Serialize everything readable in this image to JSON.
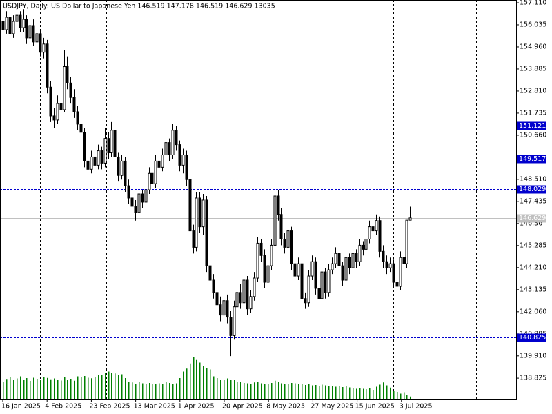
{
  "chart_data": {
    "type": "candlestick",
    "title": "USDJPY, Daily:  US Dollar to Japanese Yen  146.519 147.178 146.519 146.629  13035",
    "ohlc": [
      [
        156.2,
        156.6,
        155.5,
        155.8
      ],
      [
        155.8,
        156.7,
        155.6,
        156.4
      ],
      [
        156.4,
        156.6,
        155.3,
        155.6
      ],
      [
        155.6,
        156.5,
        155.4,
        156.2
      ],
      [
        156.2,
        156.9,
        156.0,
        156.5
      ],
      [
        156.5,
        156.7,
        155.7,
        155.9
      ],
      [
        155.9,
        156.8,
        155.7,
        156.3
      ],
      [
        156.3,
        156.5,
        155.1,
        155.4
      ],
      [
        155.4,
        156.2,
        155.2,
        156.0
      ],
      [
        156.0,
        156.3,
        155.0,
        155.2
      ],
      [
        155.2,
        155.9,
        154.9,
        155.6
      ],
      [
        155.6,
        155.8,
        154.5,
        154.7
      ],
      [
        154.7,
        155.4,
        154.4,
        155.1
      ],
      [
        155.1,
        155.3,
        152.7,
        153.0
      ],
      [
        153.0,
        153.3,
        151.3,
        151.6
      ],
      [
        151.6,
        152.0,
        151.0,
        151.4
      ],
      [
        151.4,
        152.6,
        151.2,
        152.2
      ],
      [
        152.2,
        152.5,
        151.6,
        151.9
      ],
      [
        151.9,
        154.8,
        151.8,
        154.0
      ],
      [
        154.0,
        154.5,
        152.9,
        153.2
      ],
      [
        153.2,
        153.5,
        152.2,
        152.5
      ],
      [
        152.5,
        152.9,
        151.5,
        151.8
      ],
      [
        151.8,
        152.1,
        150.9,
        151.2
      ],
      [
        151.2,
        151.5,
        150.5,
        150.8
      ],
      [
        150.8,
        151.0,
        149.1,
        149.4
      ],
      [
        149.4,
        149.7,
        148.7,
        149.0
      ],
      [
        149.0,
        149.9,
        148.8,
        149.6
      ],
      [
        149.6,
        149.9,
        148.9,
        149.2
      ],
      [
        149.2,
        150.2,
        149.0,
        149.9
      ],
      [
        149.9,
        150.1,
        149.0,
        149.3
      ],
      [
        149.3,
        151.0,
        149.1,
        150.5
      ],
      [
        150.5,
        150.8,
        149.5,
        149.8
      ],
      [
        149.8,
        151.3,
        149.6,
        150.9
      ],
      [
        150.9,
        151.1,
        149.3,
        149.6
      ],
      [
        149.6,
        149.8,
        148.4,
        148.7
      ],
      [
        148.7,
        149.7,
        148.5,
        149.4
      ],
      [
        149.4,
        149.6,
        147.9,
        148.2
      ],
      [
        148.2,
        148.5,
        147.3,
        147.6
      ],
      [
        147.6,
        147.9,
        146.9,
        147.2
      ],
      [
        147.2,
        147.5,
        146.5,
        146.9
      ],
      [
        146.9,
        148.1,
        146.7,
        147.8
      ],
      [
        147.8,
        148.0,
        147.1,
        147.4
      ],
      [
        147.4,
        148.3,
        147.2,
        148.0
      ],
      [
        148.0,
        149.1,
        147.8,
        148.8
      ],
      [
        148.8,
        149.3,
        148.0,
        148.3
      ],
      [
        148.3,
        149.7,
        148.1,
        149.4
      ],
      [
        149.4,
        149.8,
        148.8,
        149.1
      ],
      [
        149.1,
        150.0,
        148.9,
        149.7
      ],
      [
        149.7,
        150.6,
        149.5,
        150.3
      ],
      [
        150.3,
        150.5,
        149.4,
        149.7
      ],
      [
        149.7,
        151.2,
        149.5,
        150.9
      ],
      [
        150.9,
        151.1,
        149.9,
        150.2
      ],
      [
        150.2,
        150.4,
        148.9,
        149.2
      ],
      [
        149.2,
        150.0,
        148.8,
        149.7
      ],
      [
        149.7,
        149.9,
        148.2,
        148.5
      ],
      [
        148.5,
        148.8,
        145.7,
        146.0
      ],
      [
        146.0,
        146.3,
        144.9,
        145.2
      ],
      [
        145.2,
        147.9,
        145.0,
        147.6
      ],
      [
        147.6,
        147.9,
        145.9,
        146.2
      ],
      [
        146.2,
        147.8,
        145.8,
        147.5
      ],
      [
        147.5,
        147.7,
        144.0,
        144.3
      ],
      [
        144.3,
        144.6,
        143.3,
        143.6
      ],
      [
        143.6,
        143.9,
        142.7,
        143.0
      ],
      [
        143.0,
        143.6,
        142.1,
        142.4
      ],
      [
        142.4,
        142.8,
        141.6,
        141.9
      ],
      [
        141.9,
        142.9,
        141.7,
        142.6
      ],
      [
        142.6,
        142.9,
        141.5,
        141.8
      ],
      [
        141.8,
        142.1,
        139.9,
        140.9
      ],
      [
        140.9,
        142.6,
        140.7,
        142.3
      ],
      [
        142.3,
        143.3,
        142.0,
        143.0
      ],
      [
        143.0,
        143.4,
        142.2,
        142.5
      ],
      [
        142.5,
        143.9,
        142.3,
        143.6
      ],
      [
        143.6,
        143.8,
        141.9,
        142.2
      ],
      [
        142.2,
        143.1,
        142.0,
        142.8
      ],
      [
        142.8,
        144.0,
        142.6,
        143.7
      ],
      [
        143.7,
        145.7,
        143.5,
        145.4
      ],
      [
        145.4,
        145.6,
        144.5,
        144.8
      ],
      [
        144.8,
        145.1,
        143.2,
        143.5
      ],
      [
        143.5,
        144.6,
        143.3,
        144.3
      ],
      [
        144.3,
        145.6,
        144.1,
        145.3
      ],
      [
        145.3,
        148.3,
        145.1,
        147.7
      ],
      [
        147.7,
        148.0,
        146.5,
        146.8
      ],
      [
        146.8,
        147.1,
        145.3,
        145.6
      ],
      [
        145.6,
        145.9,
        144.9,
        145.2
      ],
      [
        145.2,
        146.3,
        145.0,
        146.0
      ],
      [
        146.0,
        146.2,
        144.1,
        144.4
      ],
      [
        144.4,
        144.7,
        143.5,
        143.8
      ],
      [
        143.8,
        144.7,
        143.6,
        144.4
      ],
      [
        144.4,
        144.6,
        142.4,
        142.7
      ],
      [
        142.7,
        143.0,
        142.2,
        142.5
      ],
      [
        142.5,
        144.1,
        142.3,
        143.8
      ],
      [
        143.8,
        144.8,
        143.6,
        144.5
      ],
      [
        144.5,
        144.7,
        142.9,
        143.2
      ],
      [
        143.2,
        143.5,
        142.4,
        142.7
      ],
      [
        142.7,
        144.3,
        142.5,
        144.0
      ],
      [
        144.0,
        144.2,
        142.7,
        143.0
      ],
      [
        143.0,
        144.4,
        142.8,
        144.1
      ],
      [
        144.1,
        144.7,
        143.9,
        144.4
      ],
      [
        144.4,
        145.2,
        144.2,
        144.9
      ],
      [
        144.9,
        145.1,
        144.0,
        144.3
      ],
      [
        144.3,
        144.5,
        143.3,
        143.6
      ],
      [
        143.6,
        145.0,
        143.4,
        144.7
      ],
      [
        144.7,
        144.9,
        143.9,
        144.2
      ],
      [
        144.2,
        145.2,
        144.0,
        144.9
      ],
      [
        144.9,
        145.1,
        144.2,
        144.5
      ],
      [
        144.5,
        145.6,
        144.3,
        145.3
      ],
      [
        145.3,
        145.5,
        144.8,
        145.1
      ],
      [
        145.1,
        145.9,
        144.9,
        145.6
      ],
      [
        145.6,
        146.5,
        145.4,
        146.2
      ],
      [
        146.2,
        148.0,
        145.7,
        146.0
      ],
      [
        146.0,
        146.8,
        145.8,
        146.5
      ],
      [
        146.5,
        146.7,
        144.7,
        145.0
      ],
      [
        145.0,
        145.3,
        144.2,
        144.5
      ],
      [
        144.5,
        144.8,
        143.9,
        144.2
      ],
      [
        144.2,
        144.7,
        144.0,
        144.4
      ],
      [
        144.4,
        144.6,
        143.2,
        143.5
      ],
      [
        143.5,
        143.8,
        142.9,
        143.3
      ],
      [
        143.3,
        145.0,
        143.1,
        144.7
      ],
      [
        144.7,
        145.0,
        144.1,
        144.4
      ],
      [
        144.4,
        146.5,
        144.2,
        146.519
      ],
      [
        146.519,
        147.178,
        146.519,
        146.629
      ]
    ],
    "volumes": [
      100000,
      115000,
      125000,
      108000,
      118000,
      130000,
      112000,
      120000,
      104000,
      122000,
      116000,
      110000,
      126000,
      121000,
      113000,
      118000,
      112000,
      106000,
      124000,
      110000,
      116000,
      105000,
      130000,
      128000,
      132000,
      122000,
      119000,
      124000,
      136000,
      140000,
      150000,
      158000,
      152000,
      147000,
      138000,
      142000,
      120000,
      98000,
      95000,
      88000,
      96000,
      90000,
      86000,
      92000,
      85000,
      84000,
      90000,
      86000,
      96000,
      92000,
      88000,
      90000,
      120000,
      158000,
      175000,
      205000,
      240000,
      225000,
      210000,
      190000,
      180000,
      170000,
      130000,
      120000,
      108000,
      110000,
      118000,
      112000,
      108000,
      100000,
      96000,
      92000,
      90000,
      88000,
      95000,
      98000,
      90000,
      86000,
      88000,
      92000,
      105000,
      96000,
      90000,
      88000,
      86000,
      92000,
      90000,
      84000,
      86000,
      80000,
      84000,
      78000,
      80000,
      75000,
      82000,
      78000,
      74000,
      76000,
      70000,
      72000,
      68000,
      74000,
      66000,
      60000,
      58000,
      62000,
      58000,
      56000,
      60000,
      52000,
      70000,
      82000,
      95000,
      78000,
      65000,
      48000,
      40000,
      30000,
      38000,
      22000,
      13035
    ],
    "x_labels": [
      "16 Jan 2025",
      "4 Feb 2025",
      "23 Feb 2025",
      "13 Mar 2025",
      "1 Apr 2025",
      "20 Apr 2025",
      "8 May 2025",
      "27 May 2025",
      "15 Jun 2025",
      "3 Jul 2025"
    ],
    "ylim": [
      137.82,
      157.244
    ],
    "yticks": [
      {
        "value": 157.11,
        "label": "157.110"
      },
      156.035,
      {
        "value": 154.96,
        "label": "154.960"
      },
      153.885,
      {
        "value": 152.81,
        "label": "152.810"
      },
      151.735,
      {
        "value": 150.66,
        "label": "150.660"
      },
      {
        "value": 148.51,
        "label": "148.510"
      },
      147.435,
      146.36,
      145.285,
      {
        "value": 144.21,
        "label": "144.210"
      },
      143.135,
      {
        "value": 142.06,
        "label": "142.060"
      },
      140.985,
      {
        "value": 139.91,
        "label": "139.910"
      },
      138.825
    ],
    "levels": [
      151.121,
      149.517,
      148.029,
      140.825
    ],
    "bid_line": 146.629,
    "level_color": "#0000cd",
    "volume_color": "#008000",
    "candle_color": "#000000"
  }
}
